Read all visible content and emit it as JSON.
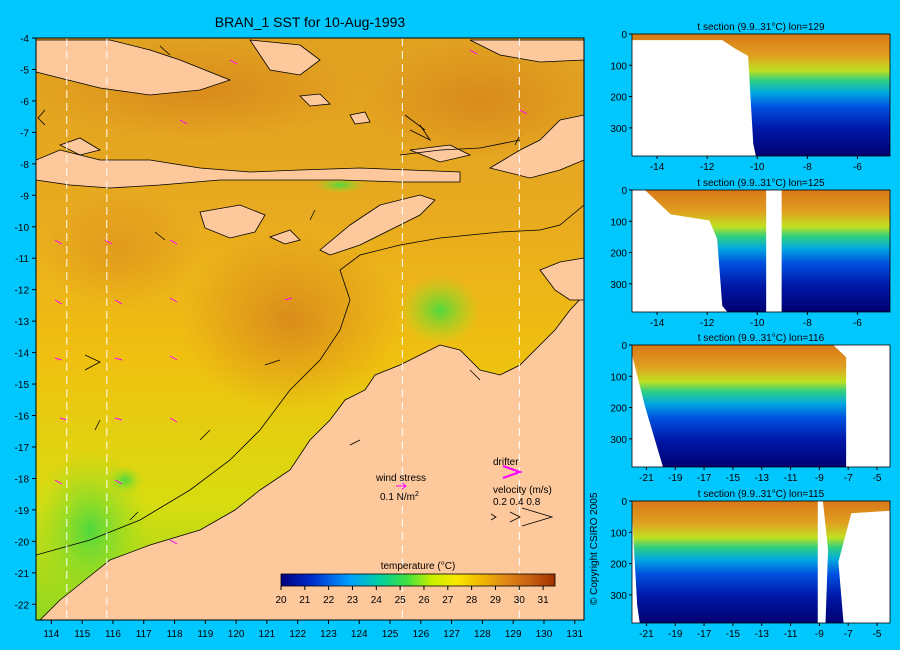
{
  "map": {
    "title": "BRAN_1 SST for 10-Aug-1993",
    "lon_ticks": [
      "114",
      "115",
      "116",
      "117",
      "118",
      "119",
      "120",
      "121",
      "122",
      "123",
      "124",
      "125",
      "126",
      "127",
      "128",
      "129",
      "130",
      "131"
    ],
    "lat_ticks": [
      "-4",
      "-5",
      "-6",
      "-7",
      "-8",
      "-9",
      "-10",
      "-11",
      "-12",
      "-13",
      "-14",
      "-15",
      "-16",
      "-17",
      "-18",
      "-19",
      "-20",
      "-21",
      "-22"
    ],
    "section_lons": [
      114.5,
      115.8,
      125.4,
      129.2
    ],
    "legend": {
      "wind_stress_label": "wind stress",
      "wind_stress_value": "0.1 N/m",
      "wind_stress_exp": "2",
      "drifter_label": "drifter",
      "velocity_label": "velocity (m/s)",
      "velocity_values": "0.2 0.4 0.8"
    },
    "colorbar": {
      "title": "temperature (°C)",
      "ticks": [
        "20",
        "21",
        "22",
        "23",
        "24",
        "25",
        "26",
        "27",
        "28",
        "29",
        "30",
        "31"
      ]
    },
    "colors": {
      "land": "#fcc89c",
      "background": "#00c8ff",
      "drifter": "#ff00ff"
    }
  },
  "sections": [
    {
      "title": "t section (9.9..31°C) lon=129",
      "y_ticks": [
        "0",
        "100",
        "200",
        "300"
      ],
      "x_ticks": [
        "-14",
        "-12",
        "-10",
        "-8",
        "-6"
      ]
    },
    {
      "title": "t section (9.9..31°C) lon=125",
      "y_ticks": [
        "0",
        "100",
        "200",
        "300"
      ],
      "x_ticks": [
        "-14",
        "-12",
        "-10",
        "-8",
        "-6"
      ]
    },
    {
      "title": "t section (9.9..31°C) lon=116",
      "y_ticks": [
        "0",
        "100",
        "200",
        "300"
      ],
      "x_ticks": [
        "-21",
        "-19",
        "-17",
        "-15",
        "-13",
        "-11",
        "-9",
        "-7",
        "-5"
      ]
    },
    {
      "title": "t section (9.9..31°C) lon=115",
      "y_ticks": [
        "0",
        "100",
        "200",
        "300"
      ],
      "x_ticks": [
        "-21",
        "-19",
        "-17",
        "-15",
        "-13",
        "-11",
        "-9",
        "-7",
        "-5"
      ]
    }
  ],
  "copyright": "© Copyright CSIRO 2005",
  "chart_data": [
    {
      "type": "heatmap",
      "title": "BRAN_1 SST for 10-Aug-1993",
      "xlabel": "",
      "ylabel": "",
      "xlim": [
        113.5,
        131.3
      ],
      "ylim": [
        -22.5,
        -4
      ],
      "colorbar_label": "temperature (°C)",
      "colorbar_range": [
        20,
        31.5
      ],
      "section_lons": [
        114.5,
        115.8,
        125.4,
        129.2
      ]
    },
    {
      "type": "heatmap",
      "title": "t section (9.9..31°C) lon=129",
      "xlim": [
        -15,
        -4.7
      ],
      "ylim": [
        390,
        0
      ],
      "value_range": [
        9.9,
        31
      ]
    },
    {
      "type": "heatmap",
      "title": "t section (9.9..31°C) lon=125",
      "xlim": [
        -15,
        -4.7
      ],
      "ylim": [
        390,
        0
      ],
      "value_range": [
        9.9,
        31
      ]
    },
    {
      "type": "heatmap",
      "title": "t section (9.9..31°C) lon=116",
      "xlim": [
        -22,
        -4.1
      ],
      "ylim": [
        390,
        0
      ],
      "value_range": [
        9.9,
        31
      ]
    },
    {
      "type": "heatmap",
      "title": "t section (9.9..31°C) lon=115",
      "xlim": [
        -22,
        -4.1
      ],
      "ylim": [
        390,
        0
      ],
      "value_range": [
        9.9,
        31
      ]
    }
  ]
}
